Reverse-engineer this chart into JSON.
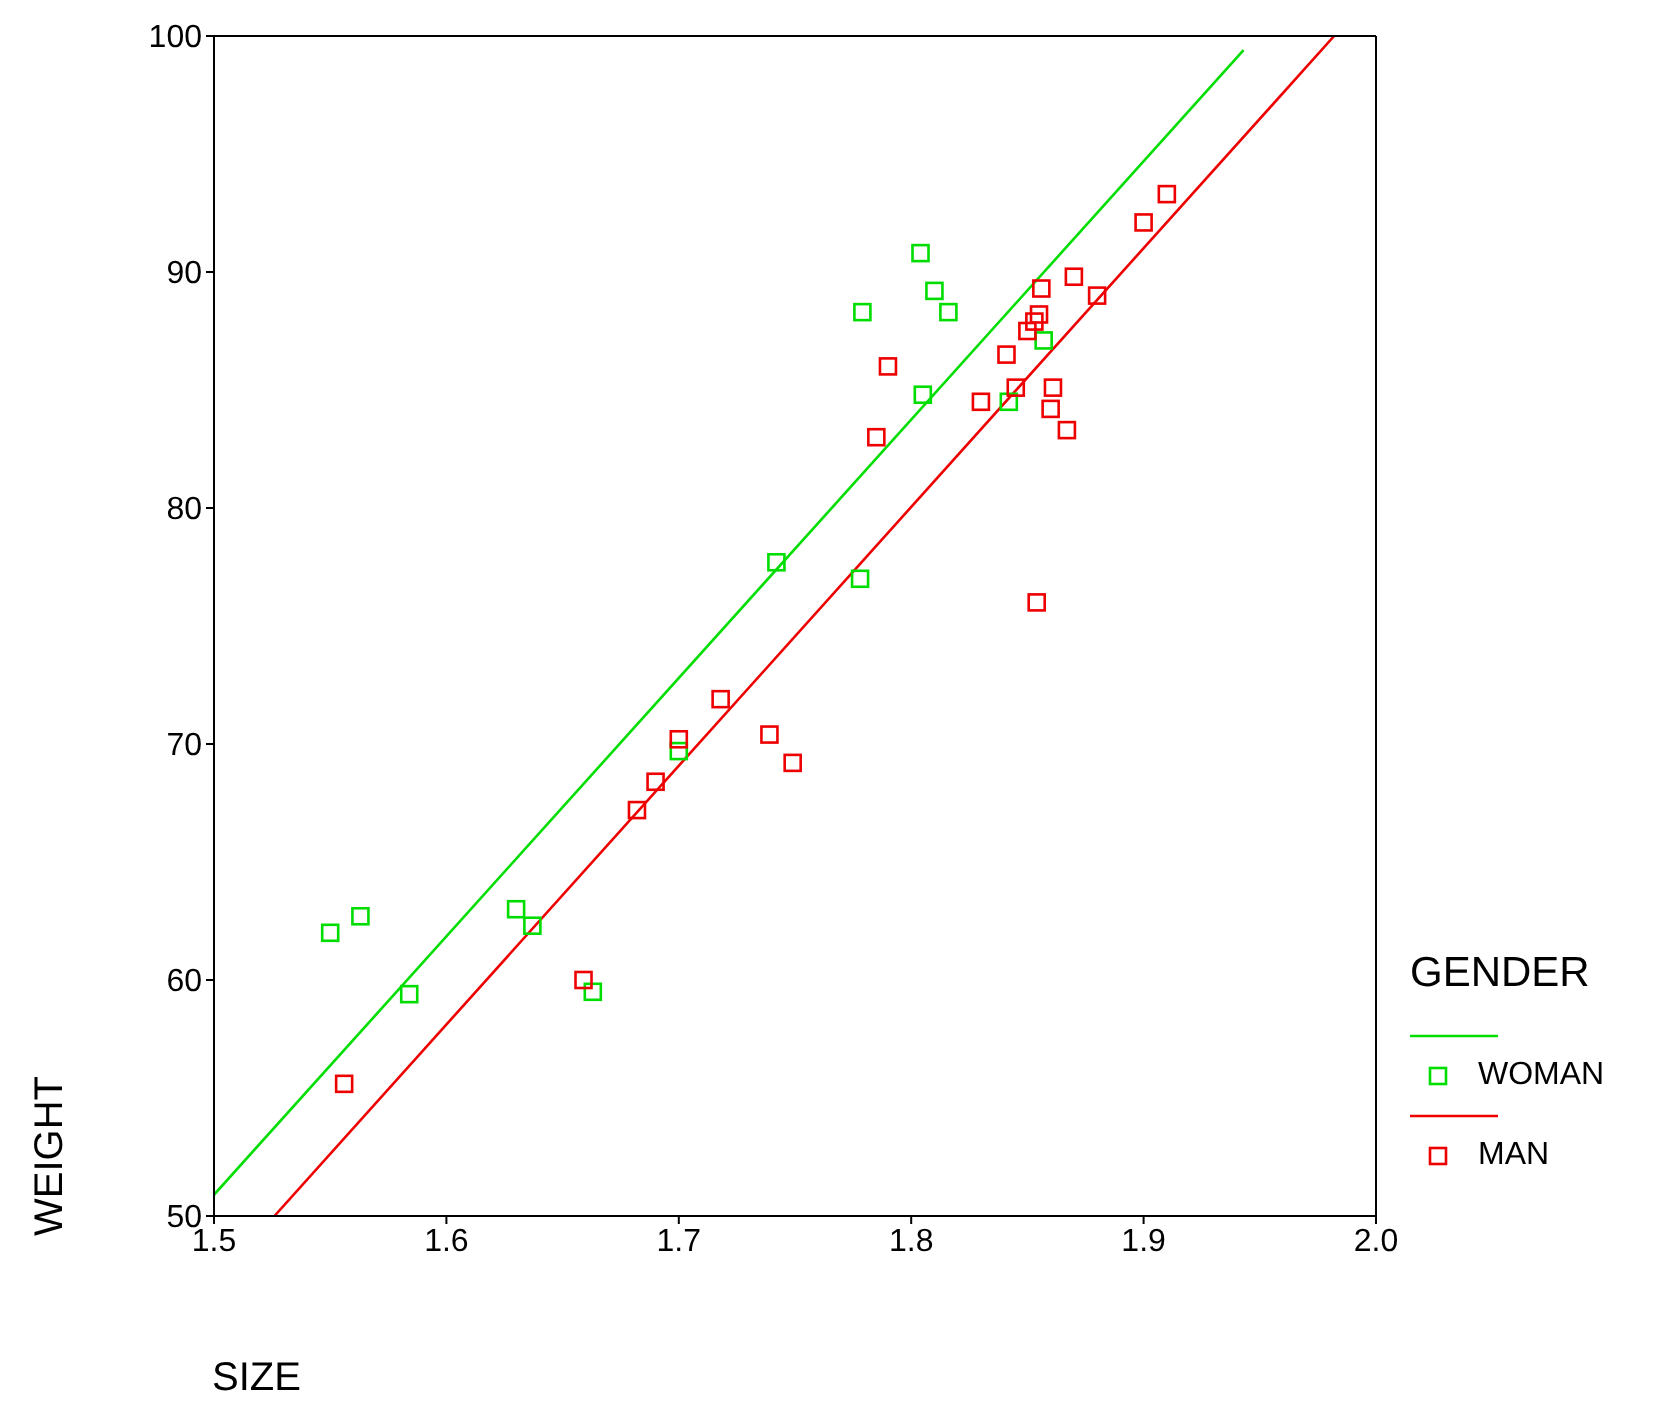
{
  "chart_data": {
    "type": "scatter",
    "xlabel": "SIZE",
    "ylabel": "WEIGHT",
    "legend_title": "GENDER",
    "legend": "right",
    "xlim": [
      1.5,
      2.0
    ],
    "xticks": [
      {
        "value": 1.5,
        "label": "1.5"
      },
      {
        "value": 1.6,
        "label": "1.6"
      },
      {
        "value": 1.7,
        "label": "1.7"
      },
      {
        "value": 1.8,
        "label": "1.8"
      },
      {
        "value": 1.9,
        "label": "1.9"
      },
      {
        "value": 2.0,
        "label": "2.0"
      }
    ],
    "ylim": [
      50,
      100
    ],
    "yticks": [
      50,
      60,
      70,
      80,
      90,
      100
    ],
    "series": [
      {
        "name": "WOMAN",
        "marker": "square",
        "color": "#00dd00",
        "x": [
          1.55,
          1.563,
          1.584,
          1.63,
          1.637,
          1.663,
          1.7,
          1.742,
          1.778,
          1.779,
          1.804,
          1.805,
          1.81,
          1.816,
          1.842,
          1.857
        ],
        "values": [
          62.0,
          62.7,
          59.4,
          63.0,
          62.3,
          59.5,
          69.7,
          77.7,
          77.0,
          88.3,
          90.8,
          84.8,
          89.2,
          88.3,
          84.5,
          87.1
        ]
      },
      {
        "name": "MAN",
        "marker": "square",
        "color": "#ee0000",
        "x": [
          1.556,
          1.659,
          1.682,
          1.69,
          1.7,
          1.718,
          1.739,
          1.749,
          1.785,
          1.79,
          1.83,
          1.841,
          1.845,
          1.85,
          1.853,
          1.855,
          1.856,
          1.854,
          1.86,
          1.861,
          1.867,
          1.87,
          1.88,
          1.9,
          1.91
        ],
        "values": [
          55.6,
          60.0,
          67.2,
          68.4,
          70.2,
          71.9,
          70.4,
          69.2,
          83.0,
          86.0,
          84.5,
          86.5,
          85.1,
          87.5,
          87.9,
          88.2,
          89.3,
          76.0,
          84.2,
          85.1,
          83.3,
          89.8,
          89.0,
          92.1,
          93.3
        ]
      },
      {
        "type": "line",
        "marker": "none",
        "color": "#00dd00",
        "x": [
          1.5,
          1.943
        ],
        "values": [
          50.9,
          99.4
        ]
      },
      {
        "type": "line",
        "marker": "none",
        "color": "#ee0000",
        "x": [
          1.526,
          1.982
        ],
        "values": [
          50,
          100
        ]
      }
    ]
  }
}
